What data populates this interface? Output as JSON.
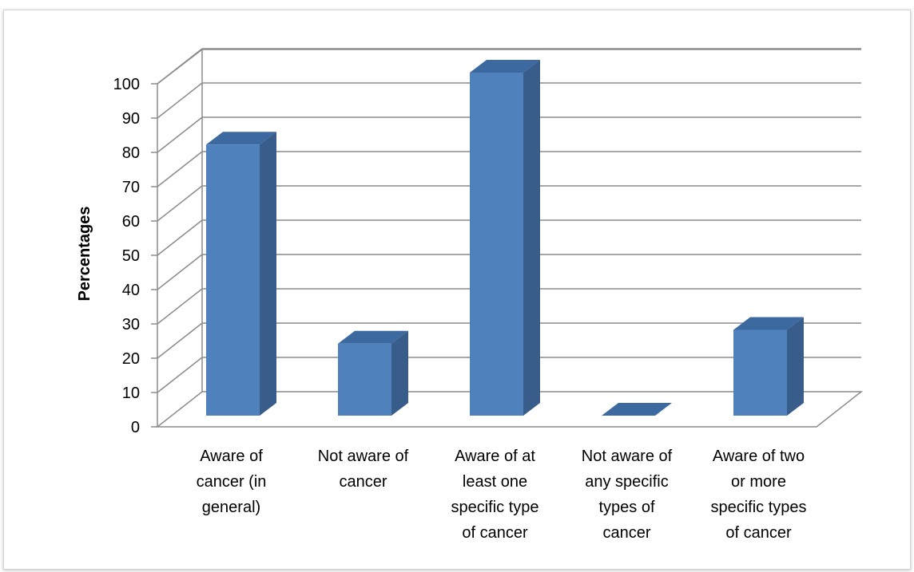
{
  "chart_data": {
    "type": "bar",
    "three_d": true,
    "ylabel": "Percentages",
    "ylim": [
      0,
      100
    ],
    "yticks": [
      0,
      10,
      20,
      30,
      40,
      50,
      60,
      70,
      80,
      90,
      100
    ],
    "grid": true,
    "legend": "none",
    "categories": [
      [
        "Aware of",
        "cancer (in",
        "general)"
      ],
      [
        "Not aware of",
        "cancer"
      ],
      [
        "Aware of at",
        "least one",
        "specific type",
        "of cancer"
      ],
      [
        "Not aware of",
        "any specific",
        "types of",
        "cancer"
      ],
      [
        "Aware of two",
        "or more",
        "specific types",
        "of cancer"
      ]
    ],
    "values": [
      79,
      21,
      100,
      0,
      25
    ],
    "colors": {
      "bar_front": "#4f81bd",
      "bar_side": "#385d8a",
      "bar_top": "#3c6aa0",
      "grid": "#8c8c8c"
    }
  }
}
